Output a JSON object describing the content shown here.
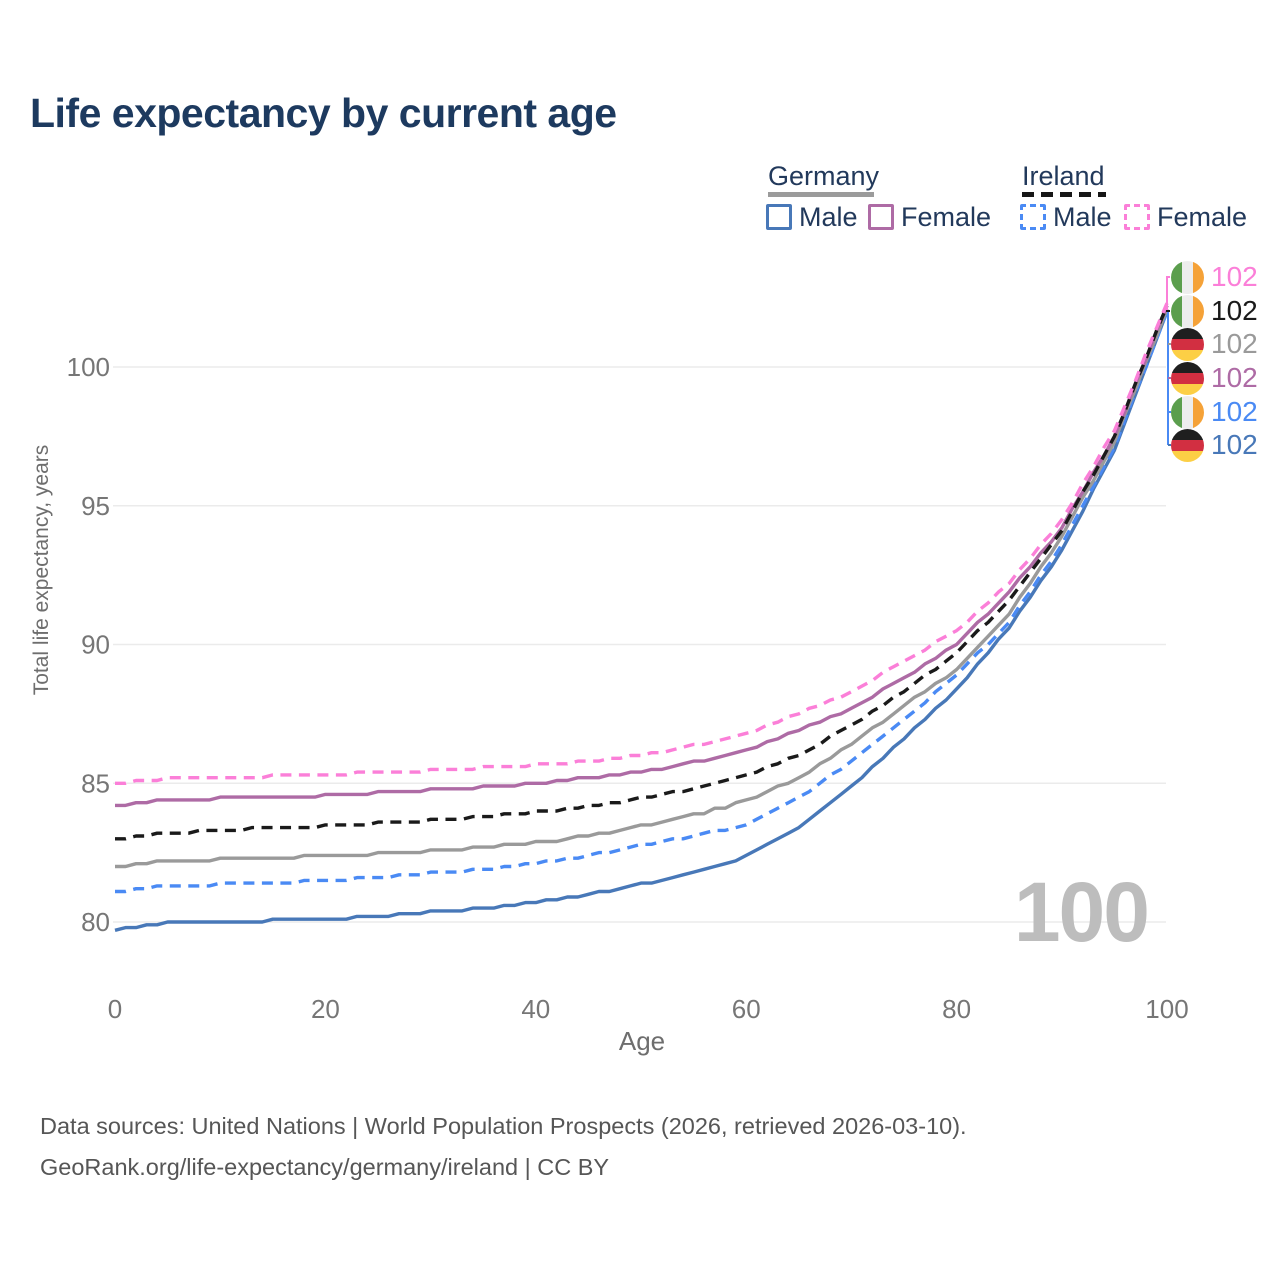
{
  "title": "Life expectancy by current age",
  "legend": {
    "groups": [
      {
        "label": "Germany",
        "line_style": "solid",
        "underline_color": "#9b9b9b",
        "items": [
          {
            "label": "Male",
            "series": "germany-male"
          },
          {
            "label": "Female",
            "series": "germany-female"
          }
        ]
      },
      {
        "label": "Ireland",
        "line_style": "dashed",
        "underline_color": "#161616",
        "items": [
          {
            "label": "Male",
            "series": "ireland-male"
          },
          {
            "label": "Female",
            "series": "ireland-female"
          }
        ]
      }
    ]
  },
  "chart_data": {
    "type": "line",
    "title": "Life expectancy by current age",
    "xlabel": "Age",
    "ylabel": "Total life expectancy, years",
    "xlim": [
      0,
      100
    ],
    "ylim": [
      78.5,
      103
    ],
    "xticks": [
      0,
      20,
      40,
      60,
      80,
      100
    ],
    "yticks": [
      80,
      85,
      90,
      95,
      100
    ],
    "grid": "horizontal",
    "legend_position": "top-right",
    "x": [
      0,
      5,
      10,
      15,
      20,
      25,
      30,
      35,
      40,
      45,
      50,
      55,
      60,
      65,
      70,
      75,
      80,
      85,
      90,
      95,
      100
    ],
    "series": [
      {
        "id": "ireland-female",
        "name": "Ireland Female",
        "color": "#fb7fd8",
        "dashed": true,
        "values": [
          85.0,
          85.15,
          85.2,
          85.25,
          85.3,
          85.4,
          85.45,
          85.55,
          85.65,
          85.8,
          86.0,
          86.35,
          86.8,
          87.5,
          88.3,
          89.4,
          90.5,
          92.2,
          94.5,
          97.7,
          102.3
        ]
      },
      {
        "id": "germany-female",
        "name": "Germany Female",
        "color": "#ae6ba5",
        "dashed": false,
        "values": [
          84.2,
          84.4,
          84.45,
          84.5,
          84.55,
          84.65,
          84.75,
          84.85,
          85.0,
          85.2,
          85.4,
          85.75,
          86.2,
          86.9,
          87.7,
          88.8,
          90.0,
          91.9,
          94.2,
          97.5,
          102.2
        ]
      },
      {
        "id": "ireland-total",
        "name": "Ireland",
        "color": "#1a1a1a",
        "dashed": true,
        "values": [
          83.0,
          83.2,
          83.3,
          83.4,
          83.45,
          83.55,
          83.65,
          83.8,
          83.95,
          84.15,
          84.45,
          84.8,
          85.25,
          86.0,
          87.1,
          88.3,
          89.7,
          91.6,
          94.1,
          97.5,
          102.2
        ]
      },
      {
        "id": "germany-total",
        "name": "Germany",
        "color": "#9a9a9a",
        "dashed": false,
        "values": [
          82.0,
          82.2,
          82.25,
          82.3,
          82.4,
          82.45,
          82.55,
          82.7,
          82.85,
          83.1,
          83.45,
          83.85,
          84.35,
          85.2,
          86.4,
          87.8,
          89.1,
          91.1,
          93.9,
          97.3,
          102.1
        ]
      },
      {
        "id": "ireland-male",
        "name": "Ireland Male",
        "color": "#4a8af4",
        "dashed": true,
        "values": [
          81.1,
          81.3,
          81.35,
          81.4,
          81.5,
          81.6,
          81.75,
          81.9,
          82.1,
          82.4,
          82.75,
          83.1,
          83.5,
          84.45,
          85.8,
          87.3,
          88.9,
          90.8,
          93.6,
          97.1,
          102.0
        ]
      },
      {
        "id": "germany-male",
        "name": "Germany Male",
        "color": "#4878b8",
        "dashed": false,
        "values": [
          79.7,
          79.95,
          80.0,
          80.05,
          80.1,
          80.2,
          80.35,
          80.5,
          80.7,
          81.0,
          81.35,
          81.8,
          82.35,
          83.4,
          84.9,
          86.6,
          88.4,
          90.6,
          93.4,
          97.0,
          102.0
        ]
      }
    ],
    "end_labels": [
      {
        "flag": "ireland",
        "series": "ireland-female",
        "value": "102",
        "color": "#fb7fd8"
      },
      {
        "flag": "ireland",
        "series": "ireland-total",
        "value": "102",
        "color": "#1a1a1a"
      },
      {
        "flag": "germany",
        "series": "germany-total",
        "value": "102",
        "color": "#9a9a9a"
      },
      {
        "flag": "germany",
        "series": "germany-female",
        "value": "102",
        "color": "#ae6ba5"
      },
      {
        "flag": "ireland",
        "series": "ireland-male",
        "value": "102",
        "color": "#4a8af4"
      },
      {
        "flag": "germany",
        "series": "germany-male",
        "value": "102",
        "color": "#4878b8"
      }
    ],
    "watermark": "100"
  },
  "footer": {
    "line1": "Data sources: United Nations | World Population Prospects (2026, retrieved 2026-03-10).",
    "line2": "GeoRank.org/life-expectancy/germany/ireland | CC BY"
  }
}
